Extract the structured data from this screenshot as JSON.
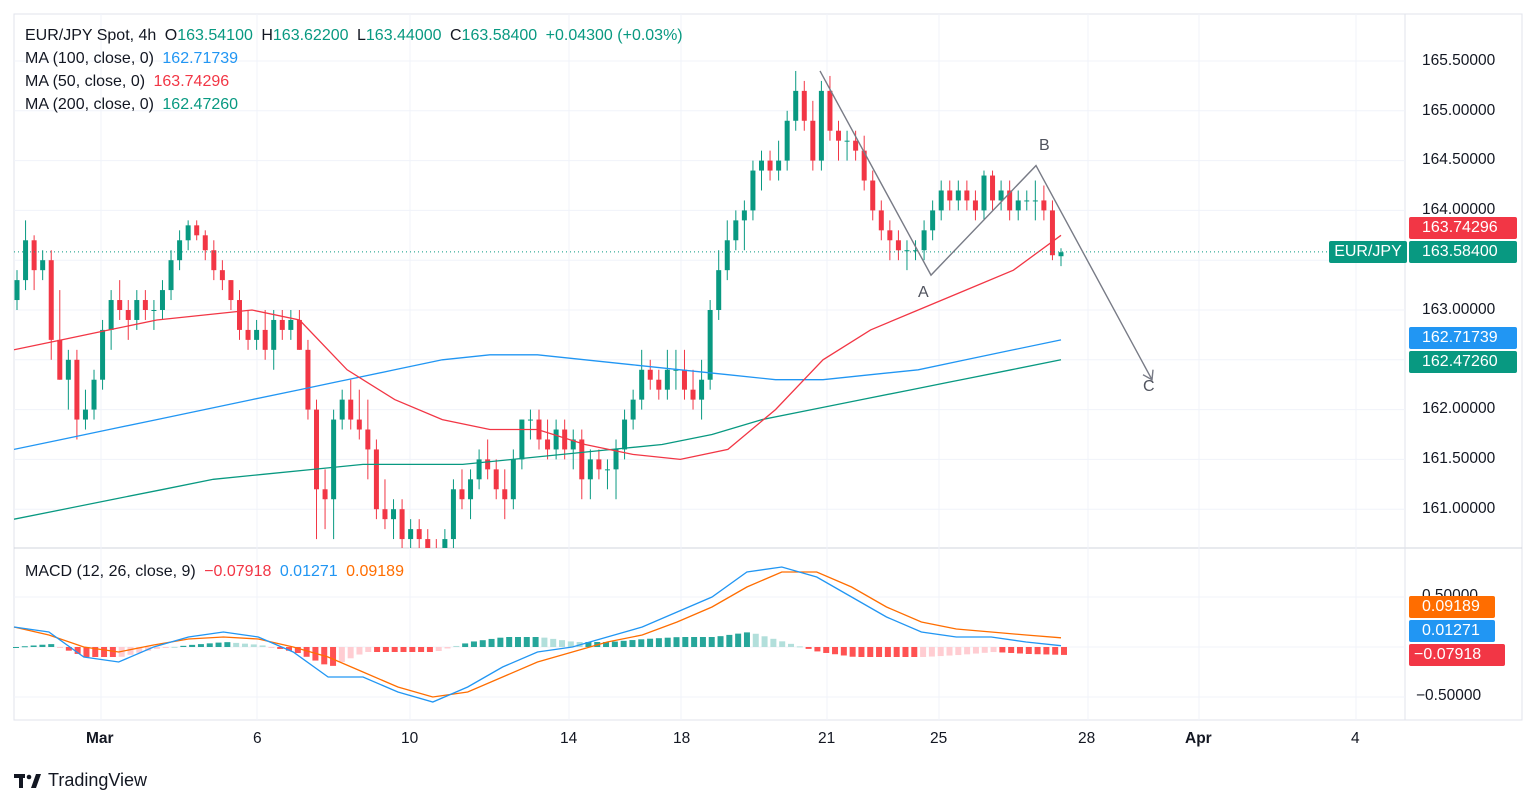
{
  "header": {
    "symbol": "EUR/JPY Spot, 4h",
    "open_label": "O",
    "open": "163.54100",
    "high_label": "H",
    "high": "163.62200",
    "low_label": "L",
    "low": "163.44000",
    "close_label": "C",
    "close": "163.58400",
    "change": "+0.04300 (+0.03%)"
  },
  "ma_legend": [
    {
      "label": "MA (100, close, 0)",
      "value": "162.71739",
      "color": "#2196f3"
    },
    {
      "label": "MA (50, close, 0)",
      "value": "163.74296",
      "color": "#f23645"
    },
    {
      "label": "MA (200, close, 0)",
      "value": "162.47260",
      "color": "#089981"
    }
  ],
  "macd_legend": {
    "label": "MACD (12, 26, close, 9)",
    "hist": "−0.07918",
    "macd": "0.01271",
    "signal": "0.09189"
  },
  "price_axis": [
    "165.50000",
    "165.00000",
    "164.50000",
    "164.00000",
    "163.00000",
    "162.00000",
    "161.50000",
    "161.00000"
  ],
  "macd_axis": [
    "0.50000",
    "−0.50000"
  ],
  "time_axis": [
    "Mar",
    "6",
    "10",
    "14",
    "18",
    "21",
    "25",
    "28",
    "Apr",
    "4"
  ],
  "badges": {
    "ma50": "163.74296",
    "last": "163.58400",
    "symbol": "EUR/JPY",
    "ma100": "162.71739",
    "ma200": "162.47260",
    "signal": "0.09189",
    "macd": "0.01271",
    "hist": "−0.07918"
  },
  "wave_labels": {
    "a": "A",
    "b": "B",
    "c": "C"
  },
  "logo_text": "TradingView",
  "colors": {
    "up": "#089981",
    "down": "#f23645",
    "ma100": "#2196f3",
    "ma50": "#f23645",
    "ma200": "#089981",
    "signal": "#ff6d00",
    "macd": "#2196f3"
  },
  "chart_data": {
    "type": "candlestick",
    "title": "EUR/JPY Spot, 4h",
    "ylim": [
      160.7,
      165.9
    ],
    "x_labels": [
      "Mar",
      "6",
      "10",
      "14",
      "18",
      "21",
      "25",
      "28",
      "Apr",
      "4"
    ],
    "candles": [
      [
        163.1,
        163.4,
        163.0,
        163.3
      ],
      [
        163.3,
        163.9,
        163.2,
        163.7
      ],
      [
        163.7,
        163.75,
        163.2,
        163.4
      ],
      [
        163.4,
        163.6,
        163.3,
        163.5
      ],
      [
        163.5,
        163.6,
        162.5,
        162.7
      ],
      [
        162.7,
        163.2,
        162.3,
        162.3
      ],
      [
        162.3,
        162.6,
        162.0,
        162.5
      ],
      [
        162.5,
        162.6,
        161.7,
        161.9
      ],
      [
        161.9,
        162.2,
        161.8,
        162.0
      ],
      [
        162.0,
        162.4,
        161.9,
        162.3
      ],
      [
        162.3,
        162.9,
        162.2,
        162.8
      ],
      [
        162.8,
        163.2,
        162.6,
        163.1
      ],
      [
        163.1,
        163.3,
        162.9,
        163.0
      ],
      [
        163.0,
        163.1,
        162.7,
        162.9
      ],
      [
        162.9,
        163.2,
        162.8,
        163.1
      ],
      [
        163.1,
        163.2,
        162.9,
        163.0
      ],
      [
        163.0,
        163.1,
        162.8,
        163.0
      ],
      [
        163.0,
        163.3,
        162.9,
        163.2
      ],
      [
        163.2,
        163.6,
        163.1,
        163.5
      ],
      [
        163.5,
        163.8,
        163.4,
        163.7
      ],
      [
        163.7,
        163.9,
        163.6,
        163.85
      ],
      [
        163.85,
        163.9,
        163.7,
        163.75
      ],
      [
        163.75,
        163.8,
        163.5,
        163.6
      ],
      [
        163.6,
        163.7,
        163.3,
        163.4
      ],
      [
        163.4,
        163.5,
        163.2,
        163.3
      ],
      [
        163.3,
        163.3,
        163.0,
        163.1
      ],
      [
        163.1,
        163.2,
        162.7,
        162.8
      ],
      [
        162.8,
        163.0,
        162.6,
        162.7
      ],
      [
        162.7,
        162.9,
        162.6,
        162.8
      ],
      [
        162.8,
        163.0,
        162.5,
        162.6
      ],
      [
        162.6,
        163.0,
        162.4,
        162.9
      ],
      [
        162.9,
        163.0,
        162.7,
        162.8
      ],
      [
        162.8,
        163.0,
        162.7,
        162.9
      ],
      [
        162.9,
        163.0,
        162.6,
        162.6
      ],
      [
        162.6,
        162.7,
        161.9,
        162.0
      ],
      [
        162.0,
        162.1,
        160.7,
        161.2
      ],
      [
        161.2,
        161.4,
        160.8,
        161.1
      ],
      [
        161.1,
        162.0,
        160.7,
        161.9
      ],
      [
        161.9,
        162.2,
        161.8,
        162.1
      ],
      [
        162.1,
        162.3,
        161.8,
        161.9
      ],
      [
        161.9,
        162.2,
        161.7,
        161.8
      ],
      [
        161.8,
        162.1,
        161.3,
        161.6
      ],
      [
        161.6,
        161.7,
        160.9,
        161.0
      ],
      [
        161.0,
        161.3,
        160.8,
        160.9
      ],
      [
        160.9,
        161.1,
        160.7,
        161.0
      ],
      [
        161.0,
        161.1,
        160.6,
        160.7
      ],
      [
        160.7,
        160.9,
        160.6,
        160.8
      ],
      [
        160.8,
        160.9,
        160.6,
        160.7
      ],
      [
        160.7,
        160.8,
        160.5,
        160.6
      ],
      [
        160.6,
        160.7,
        160.4,
        160.5
      ],
      [
        160.5,
        160.8,
        160.4,
        160.7
      ],
      [
        160.7,
        161.3,
        160.6,
        161.2
      ],
      [
        161.2,
        161.4,
        161.0,
        161.1
      ],
      [
        161.1,
        161.4,
        160.9,
        161.3
      ],
      [
        161.3,
        161.6,
        161.2,
        161.5
      ],
      [
        161.5,
        161.7,
        161.3,
        161.4
      ],
      [
        161.4,
        161.5,
        161.1,
        161.2
      ],
      [
        161.2,
        161.4,
        160.9,
        161.1
      ],
      [
        161.1,
        161.6,
        161.0,
        161.5
      ],
      [
        161.5,
        161.9,
        161.4,
        161.9
      ],
      [
        161.9,
        162.0,
        161.7,
        161.9
      ],
      [
        161.9,
        162.0,
        161.6,
        161.7
      ],
      [
        161.7,
        161.9,
        161.5,
        161.6
      ],
      [
        161.6,
        161.9,
        161.5,
        161.8
      ],
      [
        161.8,
        161.9,
        161.5,
        161.6
      ],
      [
        161.6,
        161.8,
        161.4,
        161.7
      ],
      [
        161.7,
        161.8,
        161.1,
        161.3
      ],
      [
        161.3,
        161.6,
        161.1,
        161.5
      ],
      [
        161.5,
        161.6,
        161.3,
        161.4
      ],
      [
        161.4,
        161.5,
        161.2,
        161.4
      ],
      [
        161.4,
        161.7,
        161.1,
        161.6
      ],
      [
        161.6,
        162.0,
        161.5,
        161.9
      ],
      [
        161.9,
        162.2,
        161.8,
        162.1
      ],
      [
        162.1,
        162.6,
        162.0,
        162.4
      ],
      [
        162.4,
        162.5,
        162.2,
        162.3
      ],
      [
        162.3,
        162.4,
        162.1,
        162.2
      ],
      [
        162.2,
        162.6,
        162.1,
        162.4
      ],
      [
        162.4,
        162.6,
        162.2,
        162.4
      ],
      [
        162.4,
        162.6,
        162.1,
        162.2
      ],
      [
        162.2,
        162.4,
        162.0,
        162.1
      ],
      [
        162.1,
        162.5,
        161.9,
        162.3
      ],
      [
        162.3,
        163.1,
        162.2,
        163.0
      ],
      [
        163.0,
        163.6,
        162.9,
        163.4
      ],
      [
        163.4,
        163.9,
        163.3,
        163.7
      ],
      [
        163.7,
        164.0,
        163.6,
        163.9
      ],
      [
        163.9,
        164.1,
        163.6,
        164.0
      ],
      [
        164.0,
        164.5,
        163.9,
        164.4
      ],
      [
        164.4,
        164.6,
        164.2,
        164.5
      ],
      [
        164.5,
        164.6,
        164.3,
        164.4
      ],
      [
        164.4,
        164.7,
        164.3,
        164.5
      ],
      [
        164.5,
        165.0,
        164.4,
        164.9
      ],
      [
        164.9,
        165.4,
        164.8,
        165.2
      ],
      [
        165.2,
        165.3,
        164.8,
        164.9
      ],
      [
        164.9,
        165.1,
        164.4,
        164.5
      ],
      [
        164.5,
        165.3,
        164.4,
        165.2
      ],
      [
        165.2,
        165.35,
        164.7,
        164.8
      ],
      [
        164.8,
        164.9,
        164.5,
        164.7
      ],
      [
        164.7,
        164.8,
        164.5,
        164.7
      ],
      [
        164.7,
        164.8,
        164.5,
        164.6
      ],
      [
        164.6,
        164.75,
        164.2,
        164.3
      ],
      [
        164.3,
        164.4,
        163.9,
        164.0
      ],
      [
        164.0,
        164.1,
        163.7,
        163.8
      ],
      [
        163.8,
        163.9,
        163.5,
        163.7
      ],
      [
        163.7,
        163.8,
        163.5,
        163.6
      ],
      [
        163.6,
        163.7,
        163.4,
        163.6
      ],
      [
        163.6,
        163.7,
        163.5,
        163.6
      ],
      [
        163.6,
        163.9,
        163.5,
        163.8
      ],
      [
        163.8,
        164.1,
        163.7,
        164.0
      ],
      [
        164.0,
        164.3,
        163.9,
        164.2
      ],
      [
        164.2,
        164.3,
        164.0,
        164.1
      ],
      [
        164.1,
        164.3,
        164.0,
        164.2
      ],
      [
        164.2,
        164.3,
        164.0,
        164.1
      ],
      [
        164.1,
        164.2,
        163.9,
        164.0
      ],
      [
        164.0,
        164.4,
        163.9,
        164.35
      ],
      [
        164.35,
        164.4,
        164.0,
        164.1
      ],
      [
        164.1,
        164.3,
        164.0,
        164.2
      ],
      [
        164.2,
        164.3,
        163.9,
        164.0
      ],
      [
        164.0,
        164.2,
        163.9,
        164.1
      ],
      [
        164.1,
        164.2,
        164.0,
        164.1
      ],
      [
        164.1,
        164.3,
        163.9,
        164.1
      ],
      [
        164.1,
        164.25,
        163.9,
        164.0
      ],
      [
        164.0,
        164.1,
        163.5,
        163.55
      ],
      [
        163.54,
        163.62,
        163.44,
        163.58
      ]
    ],
    "ma100": [
      161.6,
      161.7,
      161.8,
      161.9,
      162.0,
      162.1,
      162.2,
      162.3,
      162.4,
      162.5,
      162.55,
      162.55,
      162.5,
      162.45,
      162.4,
      162.35,
      162.3,
      162.3,
      162.35,
      162.4,
      162.5,
      162.6,
      162.7
    ],
    "ma50": [
      162.6,
      162.7,
      162.8,
      162.9,
      162.95,
      163.0,
      162.9,
      162.4,
      162.1,
      161.9,
      161.8,
      161.8,
      161.65,
      161.55,
      161.5,
      161.6,
      162.0,
      162.5,
      162.8,
      163.0,
      163.2,
      163.4,
      163.75
    ],
    "ma200": [
      160.9,
      161.0,
      161.1,
      161.2,
      161.3,
      161.35,
      161.4,
      161.45,
      161.45,
      161.45,
      161.5,
      161.55,
      161.6,
      161.65,
      161.75,
      161.9,
      162.0,
      162.1,
      162.2,
      162.3,
      162.4,
      162.5
    ],
    "macd_line": [
      0.2,
      0.15,
      -0.1,
      -0.15,
      0.0,
      0.1,
      0.15,
      0.1,
      -0.05,
      -0.3,
      -0.3,
      -0.45,
      -0.55,
      -0.4,
      -0.2,
      -0.05,
      0.0,
      0.1,
      0.2,
      0.35,
      0.5,
      0.75,
      0.8,
      0.7,
      0.5,
      0.3,
      0.15,
      0.1,
      0.1,
      0.05,
      0.0127
    ],
    "signal_line": [
      0.2,
      0.12,
      0.0,
      -0.05,
      0.02,
      0.08,
      0.1,
      0.08,
      0.0,
      -0.1,
      -0.25,
      -0.4,
      -0.5,
      -0.45,
      -0.3,
      -0.15,
      -0.05,
      0.05,
      0.12,
      0.25,
      0.4,
      0.6,
      0.75,
      0.75,
      0.6,
      0.4,
      0.25,
      0.18,
      0.15,
      0.12,
      0.0919
    ],
    "wave": {
      "points": [
        [
          165.4,
          "start"
        ],
        [
          163.35,
          "A"
        ],
        [
          164.45,
          "B"
        ],
        [
          162.3,
          "C"
        ]
      ]
    }
  }
}
